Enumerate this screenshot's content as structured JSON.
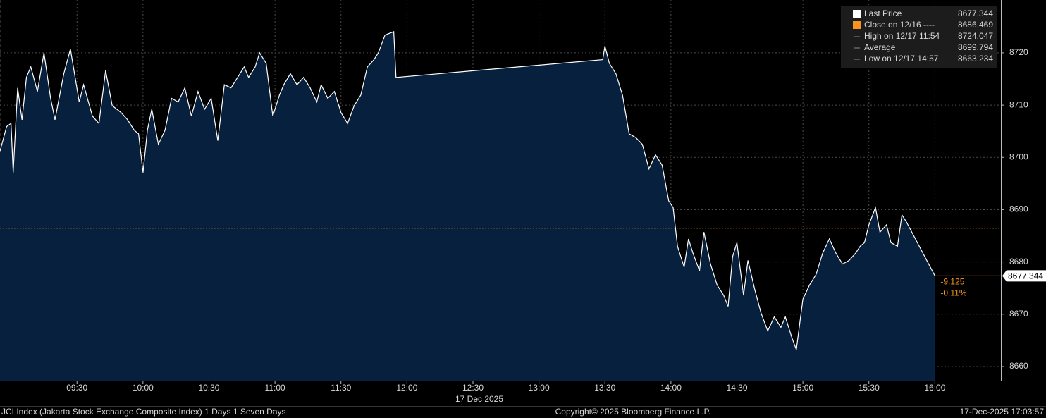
{
  "chart_data": {
    "type": "area",
    "x_label": "17 Dec 2025",
    "x": [
      "08:55",
      "08:58",
      "09:00",
      "09:01",
      "09:03",
      "09:05",
      "09:07",
      "09:09",
      "09:12",
      "09:15",
      "09:18",
      "09:20",
      "09:24",
      "09:27",
      "09:31",
      "09:33",
      "09:37",
      "09:40",
      "09:43",
      "09:46",
      "09:50",
      "09:53",
      "09:56",
      "09:58",
      "10:00",
      "10:02",
      "10:04",
      "10:07",
      "10:10",
      "10:13",
      "10:16",
      "10:19",
      "10:22",
      "10:25",
      "10:28",
      "10:31",
      "10:34",
      "10:37",
      "10:40",
      "10:43",
      "10:46",
      "10:48",
      "10:51",
      "10:53",
      "10:56",
      "10:59",
      "11:02",
      "11:04",
      "11:07",
      "11:10",
      "11:13",
      "11:16",
      "11:19",
      "11:21",
      "11:24",
      "11:27",
      "11:30",
      "11:33",
      "11:36",
      "11:39",
      "11:42",
      "11:45",
      "11:47",
      "11:50",
      "11:54",
      "11:55",
      "13:29",
      "13:30",
      "13:32",
      "13:35",
      "13:38",
      "13:41",
      "13:44",
      "13:47",
      "13:50",
      "13:53",
      "13:56",
      "13:59",
      "14:01",
      "14:03",
      "14:06",
      "14:08",
      "14:10",
      "14:13",
      "14:15",
      "14:18",
      "14:21",
      "14:24",
      "14:26",
      "14:28",
      "14:30",
      "14:33",
      "14:35",
      "14:38",
      "14:41",
      "14:44",
      "14:47",
      "14:50",
      "14:52",
      "14:55",
      "14:57",
      "15:00",
      "15:03",
      "15:06",
      "15:09",
      "15:12",
      "15:15",
      "15:18",
      "15:21",
      "15:24",
      "15:26",
      "15:28",
      "15:30",
      "15:33",
      "15:35",
      "15:38",
      "15:40",
      "15:43",
      "15:45",
      "15:47",
      "16:00"
    ],
    "series": [
      {
        "name": "Last Price",
        "color": "#ffffff",
        "fill": "#06203d",
        "values": [
          8701.2,
          8705.9,
          8706.5,
          8697.1,
          8713.3,
          8707.2,
          8715.3,
          8717.3,
          8712.6,
          8720,
          8711.3,
          8707.2,
          8716,
          8720.7,
          8710.6,
          8713.9,
          8707.9,
          8706.5,
          8716.6,
          8709.9,
          8708.6,
          8707.2,
          8705.2,
          8704.5,
          8697.1,
          8705.2,
          8709.2,
          8702.5,
          8705.2,
          8711.3,
          8710.6,
          8713.3,
          8707.9,
          8712.6,
          8709.2,
          8711.3,
          8703.2,
          8713.9,
          8713.3,
          8715.3,
          8717.3,
          8715.3,
          8717.3,
          8720,
          8718,
          8707.9,
          8711.9,
          8713.9,
          8716,
          8713.9,
          8715.3,
          8713.3,
          8710.6,
          8713.9,
          8711.3,
          8712.6,
          8708.6,
          8706.5,
          8709.9,
          8711.9,
          8717.3,
          8718.7,
          8720,
          8723.4,
          8724.047,
          8715.3,
          8718.7,
          8721.3,
          8718,
          8716,
          8711.9,
          8704.5,
          8703.8,
          8702.5,
          8697.8,
          8700.5,
          8698.5,
          8691.7,
          8690.4,
          8683,
          8679,
          8684.4,
          8681.7,
          8678.3,
          8685.7,
          8679.6,
          8675.6,
          8673.6,
          8671.5,
          8681,
          8683.7,
          8673.6,
          8680.3,
          8674.9,
          8670.2,
          8666.8,
          8669.5,
          8667.5,
          8669.5,
          8665.5,
          8663.234,
          8672.9,
          8675.6,
          8677.6,
          8681.7,
          8684.4,
          8681.7,
          8679.6,
          8680.3,
          8681.7,
          8683,
          8683.7,
          8687.1,
          8690.4,
          8685.7,
          8687.1,
          8683.7,
          8683,
          8689,
          8687.7,
          8677.344
        ]
      }
    ],
    "reference": {
      "value": 8686.469,
      "color": "#f7941d"
    },
    "change": -9.125,
    "change_percent": "-0.11%",
    "legend": [
      {
        "label": "Last Price",
        "value": 8677.344
      },
      {
        "label": "Close on 12/16 ----",
        "value": 8686.469
      },
      {
        "label": "High on 12/17 11:54",
        "value": 8724.047
      },
      {
        "label": "Average",
        "value": 8699.794
      },
      {
        "label": "Low on 12/17 14:57",
        "value": 8663.234
      }
    ],
    "xlim": [
      "08:55",
      "16:30"
    ],
    "xticks": [
      "09:30",
      "10:00",
      "10:30",
      "11:00",
      "11:30",
      "12:00",
      "12:30",
      "13:00",
      "13:30",
      "14:00",
      "14:30",
      "15:00",
      "15:30",
      "16:00"
    ],
    "ylim": [
      8657.3,
      8730.1
    ],
    "yticks": [
      8660,
      8670,
      8680,
      8690,
      8700,
      8710,
      8720
    ],
    "grid": true
  },
  "footer": {
    "left": "JCI Index (Jakarta Stock Exchange Composite Index) 1 Days 1 Seven Days",
    "center": "Copyright© 2025 Bloomberg Finance L.P.",
    "right": "17-Dec-2025 17:03:57"
  }
}
